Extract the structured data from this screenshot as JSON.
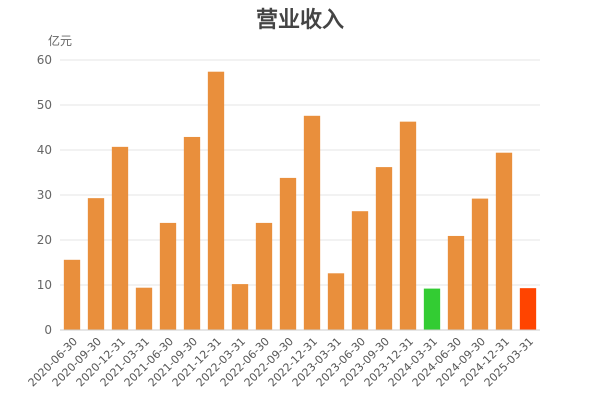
{
  "chart_data": {
    "type": "bar",
    "title": "营业收入",
    "unit": "亿元",
    "categories": [
      "2020-06-30",
      "2020-09-30",
      "2020-12-31",
      "2021-03-31",
      "2021-06-30",
      "2021-09-30",
      "2021-12-31",
      "2022-03-31",
      "2022-06-30",
      "2022-09-30",
      "2022-12-31",
      "2023-03-31",
      "2023-06-30",
      "2023-09-30",
      "2023-12-31",
      "2024-03-31",
      "2024-06-30",
      "2024-09-30",
      "2024-12-31",
      "2025-03-31"
    ],
    "values": [
      15.6,
      29.3,
      40.7,
      9.4,
      23.8,
      42.9,
      57.4,
      10.2,
      23.8,
      33.8,
      47.6,
      12.6,
      26.4,
      36.2,
      46.3,
      9.2,
      20.9,
      29.2,
      39.4,
      9.3
    ],
    "colors": [
      "#E98F3C",
      "#E98F3C",
      "#E98F3C",
      "#E98F3C",
      "#E98F3C",
      "#E98F3C",
      "#E98F3C",
      "#E98F3C",
      "#E98F3C",
      "#E98F3C",
      "#E98F3C",
      "#E98F3C",
      "#E98F3C",
      "#E98F3C",
      "#E98F3C",
      "#33CC33",
      "#E98F3C",
      "#E98F3C",
      "#E98F3C",
      "#FF4400"
    ],
    "ylim": [
      0,
      60
    ],
    "yticks": [
      0,
      10,
      20,
      30,
      40,
      50,
      60
    ],
    "grid": true,
    "legend": "none"
  }
}
